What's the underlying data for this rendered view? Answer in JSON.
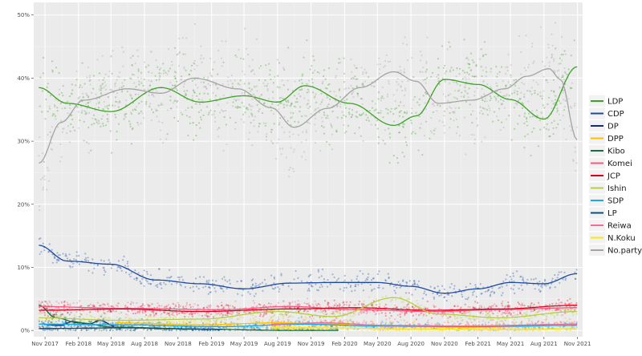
{
  "chart_data": {
    "type": "scatter",
    "title": "",
    "xlabel": "",
    "ylabel": "",
    "x_range": [
      "2017-10-01",
      "2021-11-15"
    ],
    "ylim": [
      -0.01,
      0.52
    ],
    "y_ticks": [
      {
        "value": 0.0,
        "label": "0%"
      },
      {
        "value": 0.1,
        "label": "10%"
      },
      {
        "value": 0.2,
        "label": "20%"
      },
      {
        "value": 0.3,
        "label": "30%"
      },
      {
        "value": 0.4,
        "label": "40%"
      },
      {
        "value": 0.5,
        "label": "50%"
      }
    ],
    "x_ticks": [
      {
        "date": "2017-11-01",
        "label": "Nov 2017"
      },
      {
        "date": "2018-02-01",
        "label": "Feb 2018"
      },
      {
        "date": "2018-05-01",
        "label": "May 2018"
      },
      {
        "date": "2018-08-01",
        "label": "Aug 2018"
      },
      {
        "date": "2018-11-01",
        "label": "Nov 2018"
      },
      {
        "date": "2019-02-01",
        "label": "Feb 2019"
      },
      {
        "date": "2019-05-01",
        "label": "May 2019"
      },
      {
        "date": "2019-08-01",
        "label": "Aug 2019"
      },
      {
        "date": "2019-11-01",
        "label": "Nov 2019"
      },
      {
        "date": "2020-02-01",
        "label": "Feb 2020"
      },
      {
        "date": "2020-05-01",
        "label": "May 2020"
      },
      {
        "date": "2020-08-01",
        "label": "Aug 2020"
      },
      {
        "date": "2020-11-01",
        "label": "Nov 2020"
      },
      {
        "date": "2021-02-01",
        "label": "Feb 2021"
      },
      {
        "date": "2021-05-01",
        "label": "May 2021"
      },
      {
        "date": "2021-08-01",
        "label": "Aug 2021"
      },
      {
        "date": "2021-11-01",
        "label": "Nov 2021"
      }
    ],
    "grid": true,
    "legend_position": "right",
    "series": [
      {
        "name": "LDP",
        "color": "#3ca324",
        "spread": 0.045,
        "trend": [
          [
            "2017-10-15",
            0.385
          ],
          [
            "2018-01-01",
            0.36
          ],
          [
            "2018-05-01",
            0.347
          ],
          [
            "2018-09-15",
            0.385
          ],
          [
            "2019-01-01",
            0.362
          ],
          [
            "2019-05-01",
            0.372
          ],
          [
            "2019-08-01",
            0.362
          ],
          [
            "2019-10-15",
            0.388
          ],
          [
            "2020-02-15",
            0.36
          ],
          [
            "2020-06-15",
            0.325
          ],
          [
            "2020-08-15",
            0.34
          ],
          [
            "2020-11-01",
            0.398
          ],
          [
            "2021-02-01",
            0.39
          ],
          [
            "2021-05-01",
            0.366
          ],
          [
            "2021-08-01",
            0.335
          ],
          [
            "2021-10-31",
            0.418
          ]
        ]
      },
      {
        "name": "CDP",
        "color": "#1b4aa0",
        "spread": 0.012,
        "trend": [
          [
            "2017-10-15",
            0.135
          ],
          [
            "2018-01-01",
            0.11
          ],
          [
            "2018-05-01",
            0.105
          ],
          [
            "2018-09-01",
            0.08
          ],
          [
            "2019-01-01",
            0.074
          ],
          [
            "2019-05-01",
            0.066
          ],
          [
            "2019-09-01",
            0.075
          ],
          [
            "2020-01-01",
            0.076
          ],
          [
            "2020-05-01",
            0.076
          ],
          [
            "2020-08-01",
            0.07
          ],
          [
            "2020-11-01",
            0.059
          ],
          [
            "2021-02-01",
            0.066
          ],
          [
            "2021-05-01",
            0.076
          ],
          [
            "2021-08-01",
            0.074
          ],
          [
            "2021-10-31",
            0.09
          ]
        ]
      },
      {
        "name": "DP",
        "color": "#152c73",
        "spread": 0.006,
        "trend": [
          [
            "2017-10-15",
            0.01
          ],
          [
            "2017-12-15",
            0.008
          ],
          [
            "2018-01-15",
            0.014
          ],
          [
            "2018-03-01",
            0.01
          ],
          [
            "2018-04-01",
            0.016
          ],
          [
            "2018-05-10",
            0.007
          ]
        ]
      },
      {
        "name": "DPP",
        "color": "#ffc000",
        "spread": 0.006,
        "trend": [
          [
            "2018-05-15",
            0.012
          ],
          [
            "2019-01-01",
            0.009
          ],
          [
            "2019-08-01",
            0.012
          ],
          [
            "2020-01-01",
            0.01
          ],
          [
            "2020-09-01",
            0.006
          ],
          [
            "2021-01-01",
            0.005
          ],
          [
            "2021-06-01",
            0.006
          ],
          [
            "2021-10-31",
            0.01
          ]
        ]
      },
      {
        "name": "Kibo",
        "color": "#186c3e",
        "spread": 0.008,
        "trend": [
          [
            "2017-10-15",
            0.04
          ],
          [
            "2017-12-01",
            0.02
          ],
          [
            "2018-02-01",
            0.012
          ],
          [
            "2018-05-15",
            0.005
          ],
          [
            "2019-01-01",
            0.002
          ],
          [
            "2019-09-01",
            0.0
          ],
          [
            "2020-01-15",
            0.0
          ]
        ]
      },
      {
        "name": "Komei",
        "color": "#f55881",
        "spread": 0.008,
        "trend": [
          [
            "2017-10-15",
            0.038
          ],
          [
            "2018-06-01",
            0.035
          ],
          [
            "2019-03-01",
            0.033
          ],
          [
            "2019-09-01",
            0.038
          ],
          [
            "2020-03-01",
            0.033
          ],
          [
            "2020-10-01",
            0.03
          ],
          [
            "2021-04-01",
            0.033
          ],
          [
            "2021-10-31",
            0.036
          ]
        ]
      },
      {
        "name": "JCP",
        "color": "#db001c",
        "spread": 0.008,
        "trend": [
          [
            "2017-10-15",
            0.032
          ],
          [
            "2018-06-01",
            0.034
          ],
          [
            "2019-01-01",
            0.03
          ],
          [
            "2019-09-01",
            0.034
          ],
          [
            "2020-03-01",
            0.036
          ],
          [
            "2020-10-01",
            0.032
          ],
          [
            "2021-04-01",
            0.034
          ],
          [
            "2021-10-31",
            0.04
          ]
        ]
      },
      {
        "name": "Ishin",
        "color": "#b8ce43",
        "spread": 0.008,
        "trend": [
          [
            "2017-10-15",
            0.02
          ],
          [
            "2018-06-01",
            0.016
          ],
          [
            "2019-01-01",
            0.018
          ],
          [
            "2019-08-01",
            0.03
          ],
          [
            "2020-01-01",
            0.022
          ],
          [
            "2020-06-15",
            0.052
          ],
          [
            "2020-10-15",
            0.026
          ],
          [
            "2021-04-01",
            0.02
          ],
          [
            "2021-10-31",
            0.03
          ]
        ]
      },
      {
        "name": "SDP",
        "color": "#1ca9e9",
        "spread": 0.005,
        "trend": [
          [
            "2017-10-15",
            0.01
          ],
          [
            "2018-06-01",
            0.009
          ],
          [
            "2019-03-01",
            0.006
          ],
          [
            "2019-10-01",
            0.01
          ],
          [
            "2020-05-01",
            0.007
          ],
          [
            "2021-01-01",
            0.006
          ],
          [
            "2021-10-31",
            0.008
          ]
        ]
      },
      {
        "name": "LP",
        "color": "#0b4e7c",
        "spread": 0.004,
        "trend": [
          [
            "2017-10-15",
            0.003
          ],
          [
            "2018-06-01",
            0.004
          ],
          [
            "2019-03-01",
            0.002
          ]
        ]
      },
      {
        "name": "Reiwa",
        "color": "#ed6d9b",
        "spread": 0.006,
        "trend": [
          [
            "2019-07-15",
            0.01
          ],
          [
            "2019-12-01",
            0.012
          ],
          [
            "2020-06-01",
            0.008
          ],
          [
            "2021-01-01",
            0.007
          ],
          [
            "2021-10-31",
            0.01
          ]
        ]
      },
      {
        "name": "N.Koku",
        "color": "#f8e71c",
        "spread": 0.004,
        "trend": [
          [
            "2019-07-15",
            0.005
          ],
          [
            "2020-01-01",
            0.004
          ],
          [
            "2020-09-01",
            0.002
          ],
          [
            "2021-06-01",
            0.001
          ],
          [
            "2021-10-31",
            0.003
          ]
        ]
      },
      {
        "name": "No.party",
        "color": "#a4a4a4",
        "spread": 0.055,
        "trend": [
          [
            "2017-10-15",
            0.265
          ],
          [
            "2017-12-15",
            0.33
          ],
          [
            "2018-02-15",
            0.365
          ],
          [
            "2018-06-15",
            0.383
          ],
          [
            "2018-09-15",
            0.376
          ],
          [
            "2018-12-15",
            0.4
          ],
          [
            "2019-04-15",
            0.383
          ],
          [
            "2019-07-15",
            0.353
          ],
          [
            "2019-09-15",
            0.322
          ],
          [
            "2019-12-15",
            0.352
          ],
          [
            "2020-03-15",
            0.385
          ],
          [
            "2020-06-15",
            0.41
          ],
          [
            "2020-08-15",
            0.395
          ],
          [
            "2020-10-15",
            0.36
          ],
          [
            "2021-01-15",
            0.365
          ],
          [
            "2021-04-15",
            0.383
          ],
          [
            "2021-06-15",
            0.403
          ],
          [
            "2021-08-15",
            0.415
          ],
          [
            "2021-09-15",
            0.398
          ],
          [
            "2021-10-31",
            0.302
          ]
        ]
      }
    ]
  }
}
